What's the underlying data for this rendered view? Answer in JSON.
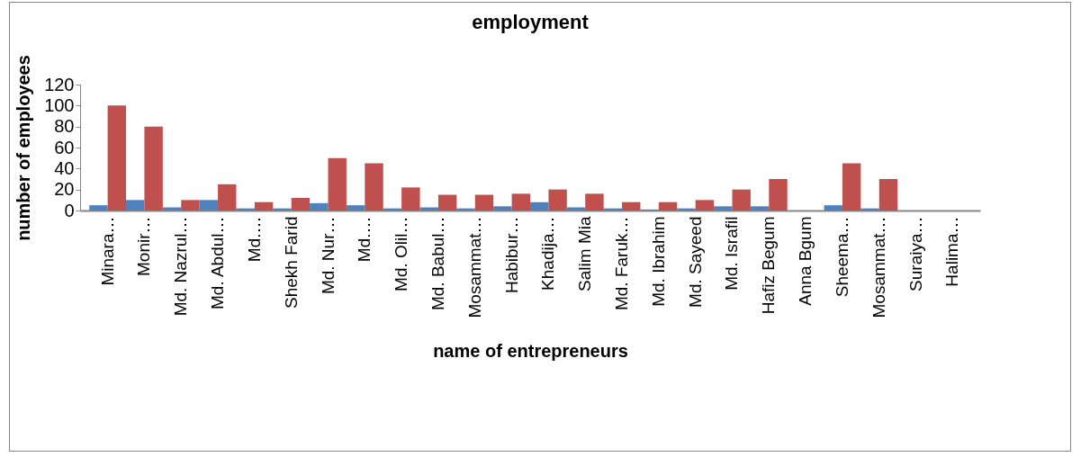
{
  "chart_data": {
    "type": "bar",
    "title": "employment",
    "xlabel": "name of entrepreneurs",
    "ylabel": "number of employees",
    "categories": [
      "Minara…",
      "Monir…",
      "Md. Nazrul…",
      "Md. Abdul…",
      "Md.…",
      "Shekh Farid",
      "Md. Nur…",
      "Md.…",
      "Md. Olil…",
      "Md. Babul…",
      "Mosammat…",
      "Habibur…",
      "Khadija…",
      "Salim Mia",
      "Md. Faruk…",
      "Md. Ibrahim",
      "Md. Sayeed",
      "Md. Israfil",
      "Hafiz Begum",
      "Anna Bgum",
      "Sheema…",
      "Mosammat…",
      "Suraiya…",
      "Halima…"
    ],
    "series": [
      {
        "color": "#4f81bd",
        "values": [
          5,
          10,
          3,
          10,
          2,
          2,
          7,
          5,
          2,
          3,
          2,
          4,
          8,
          3,
          2,
          1,
          2,
          4,
          4,
          0,
          5,
          2,
          0,
          0
        ]
      },
      {
        "color": "#c0504d",
        "values": [
          100,
          80,
          10,
          25,
          8,
          12,
          50,
          45,
          22,
          15,
          15,
          16,
          20,
          16,
          8,
          8,
          10,
          20,
          30,
          0,
          45,
          30,
          0,
          0
        ]
      }
    ],
    "ylim": [
      0,
      120
    ],
    "yticks": [
      0,
      20,
      40,
      60,
      80,
      100,
      120
    ],
    "grid": false,
    "legend": false
  }
}
